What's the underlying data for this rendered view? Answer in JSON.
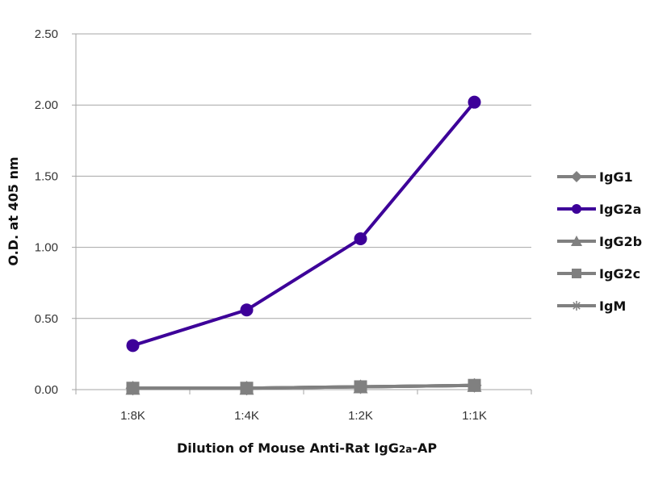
{
  "chart_data": {
    "type": "line",
    "title": "",
    "xlabel": "Dilution of Mouse Anti-Rat IgG2a-AP",
    "ylabel": "O.D. at 405 nm",
    "categories": [
      "1:8K",
      "1:4K",
      "1:2K",
      "1:1K"
    ],
    "ylim": [
      0,
      2.5
    ],
    "yticks": [
      "0.00",
      "0.50",
      "1.00",
      "1.50",
      "2.00",
      "2.50"
    ],
    "grid": true,
    "legend_position": "right",
    "series": [
      {
        "name": "IgG1",
        "values": [
          0.01,
          0.01,
          0.02,
          0.03
        ],
        "color": "#808080",
        "marker": "diamond"
      },
      {
        "name": "IgG2a",
        "values": [
          0.31,
          0.56,
          1.06,
          2.02
        ],
        "color": "#3d0099",
        "marker": "circle"
      },
      {
        "name": "IgG2b",
        "values": [
          0.01,
          0.01,
          0.02,
          0.03
        ],
        "color": "#808080",
        "marker": "triangle"
      },
      {
        "name": "IgG2c",
        "values": [
          0.01,
          0.01,
          0.02,
          0.03
        ],
        "color": "#808080",
        "marker": "square"
      },
      {
        "name": "IgM",
        "values": [
          0.01,
          0.01,
          0.02,
          0.03
        ],
        "color": "#808080",
        "marker": "asterisk"
      }
    ]
  }
}
